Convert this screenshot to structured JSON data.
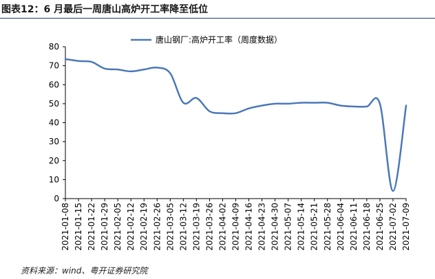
{
  "figure": {
    "title": "图表12：6 月最后一周唐山高炉开工率降至低位",
    "source": "资料来源：wind、粤开证券研究院"
  },
  "chart_data": {
    "type": "line",
    "title": "",
    "xlabel": "",
    "ylabel": "",
    "ylim": [
      0,
      80
    ],
    "yticks": [
      0,
      10,
      20,
      30,
      40,
      50,
      60,
      70,
      80
    ],
    "grid": false,
    "legend_position": "top",
    "color": "#4a78b8",
    "x_tick_labels": [
      "2021-01-08",
      "2021-01-15",
      "2021-01-22",
      "2021-01-29",
      "2021-02-05",
      "2021-02-12",
      "2021-02-19",
      "2021-02-26",
      "2021-03-05",
      "2021-03-12",
      "2021-03-19",
      "2021-03-26",
      "2021-04-02",
      "2021-04-09",
      "2021-04-16",
      "2021-04-23",
      "2021-04-30",
      "2021-05-07",
      "2021-05-14",
      "2021-05-21",
      "2021-05-28",
      "2021-06-04",
      "2021-06-11",
      "2021-06-18",
      "2021-06-25",
      "2021-07-02",
      "2021-07-09"
    ],
    "series": [
      {
        "name": "唐山钢厂:高炉开工率（周度数据）",
        "x": [
          "2021-01-08",
          "2021-01-15",
          "2021-01-22",
          "2021-01-29",
          "2021-02-05",
          "2021-02-12",
          "2021-02-19",
          "2021-02-26",
          "2021-03-05",
          "2021-03-12",
          "2021-03-19",
          "2021-03-26",
          "2021-04-02",
          "2021-04-09",
          "2021-04-16",
          "2021-04-23",
          "2021-04-30",
          "2021-05-07",
          "2021-05-14",
          "2021-05-21",
          "2021-05-28",
          "2021-06-04",
          "2021-06-11",
          "2021-06-18",
          "2021-06-25",
          "2021-07-02",
          "2021-07-09"
        ],
        "values": [
          73.5,
          72.5,
          72.0,
          68.5,
          68.0,
          67.0,
          68.0,
          69.0,
          66.0,
          50.5,
          53.0,
          46.0,
          45.0,
          45.0,
          47.5,
          49.0,
          50.0,
          50.0,
          50.5,
          50.5,
          50.5,
          49.0,
          48.5,
          48.5,
          50.0,
          4.0,
          49.0
        ]
      }
    ]
  }
}
